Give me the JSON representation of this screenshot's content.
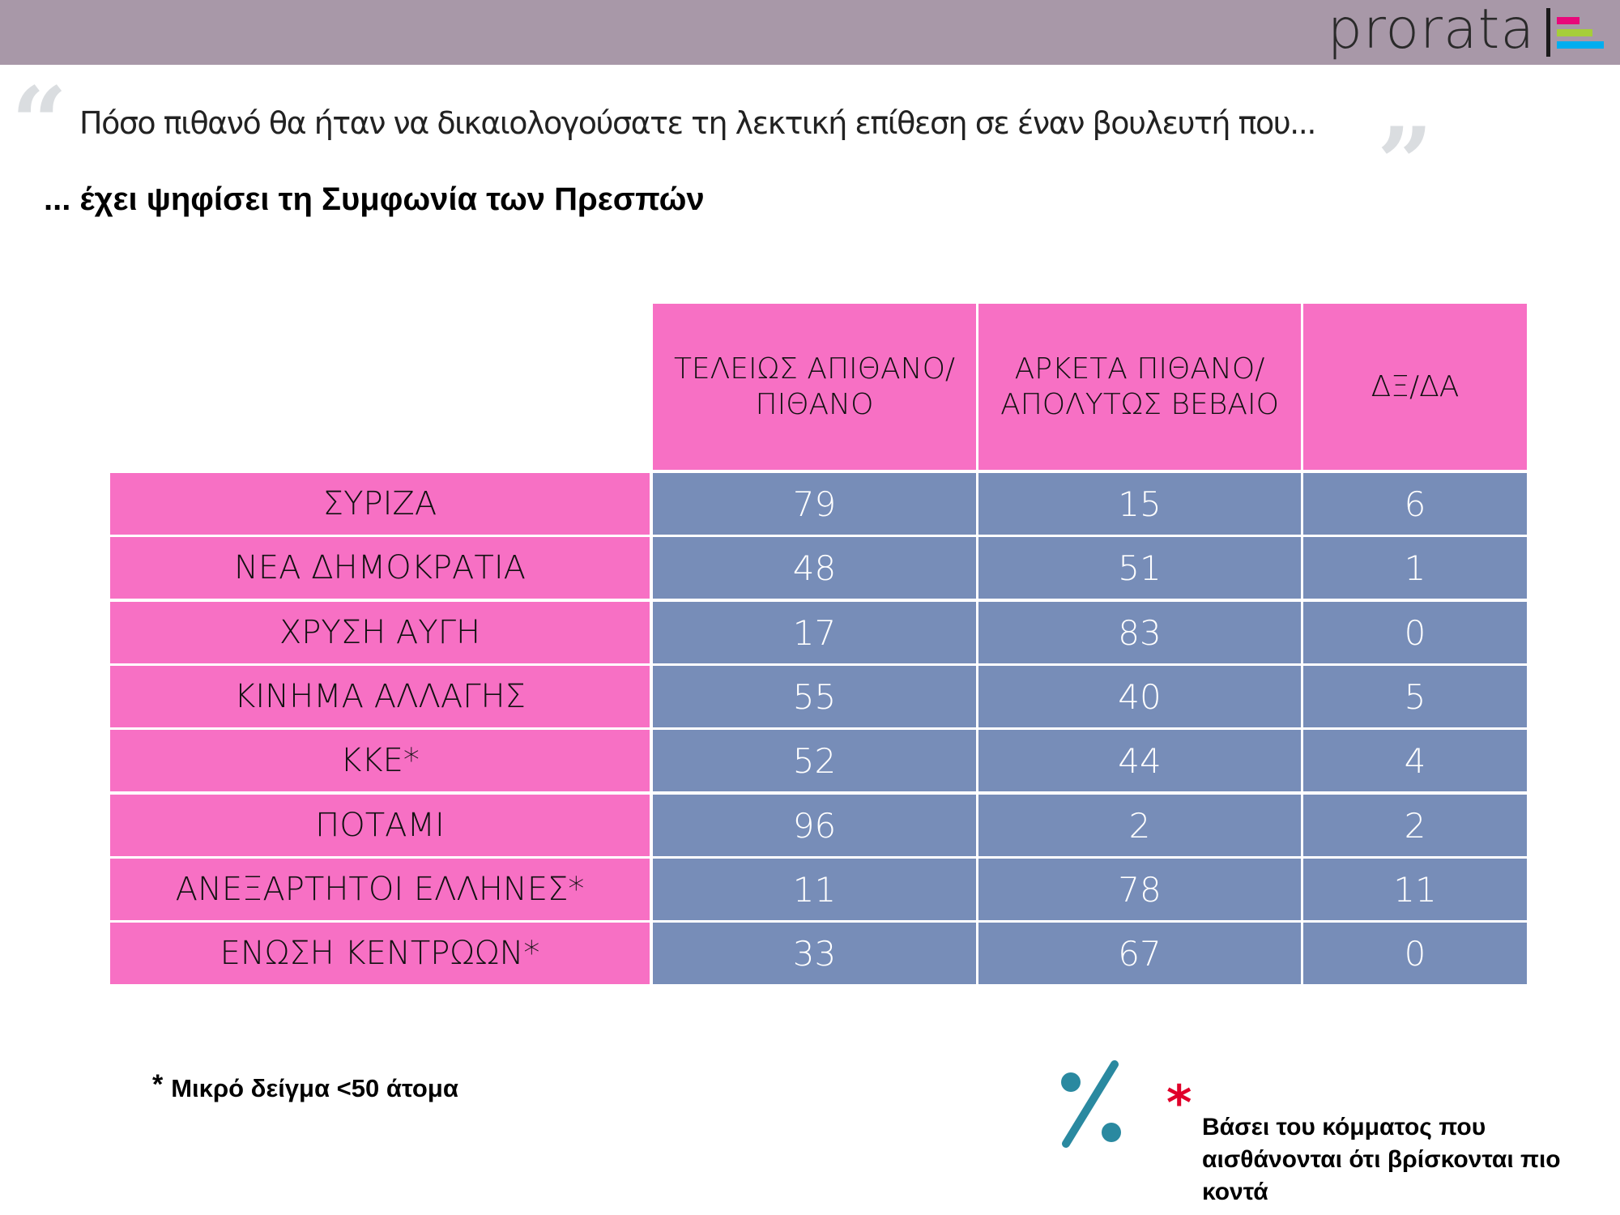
{
  "header": {
    "logo_text": "prorata",
    "logo_bar_colors": [
      "#E8087A",
      "#A6CE39",
      "#00AEEF"
    ],
    "bar_color": "#A898A8"
  },
  "question": {
    "open_quote": "“",
    "text": "Πόσο πιθανό θα ήταν να δικαιολογούσατε τη λεκτική επίθεση σε έναν βουλευτή που...",
    "close_quote": "”"
  },
  "subtitle": "... έχει ψηφίσει τη Συμφωνία των Πρεσπών",
  "table": {
    "columns": [
      "ΤΕΛΕΙΩΣ ΑΠΙΘΑΝΟ/ΠΙΘΑΝΟ",
      "ΑΡΚΕΤΑ ΠΙΘΑΝΟ/ΑΠΟΛΥΤΩΣ ΒΕΒΑΙΟ",
      "ΔΞ/ΔΑ"
    ],
    "rows": [
      {
        "label": "ΣΥΡΙΖΑ",
        "values": [
          "79",
          "15",
          "6"
        ]
      },
      {
        "label": "ΝΕΑ ΔΗΜΟΚΡΑΤΙΑ",
        "values": [
          "48",
          "51",
          "1"
        ]
      },
      {
        "label": "ΧΡΥΣΗ ΑΥΓΗ",
        "values": [
          "17",
          "83",
          "0"
        ]
      },
      {
        "label": "ΚΙΝΗΜΑ ΑΛΛΑΓΗΣ",
        "values": [
          "55",
          "40",
          "5"
        ]
      },
      {
        "label": "ΚΚΕ*",
        "values": [
          "52",
          "44",
          "4"
        ]
      },
      {
        "label": "ΠΟΤΑΜΙ",
        "values": [
          "96",
          "2",
          "2"
        ]
      },
      {
        "label": "ΑΝΕΞΑΡΤΗΤΟΙ ΕΛΛΗΝΕΣ*",
        "values": [
          "11",
          "78",
          "11"
        ]
      },
      {
        "label": "ΕΝΩΣΗ ΚΕΝΤΡΩΩΝ*",
        "values": [
          "33",
          "67",
          "0"
        ]
      }
    ],
    "header_color": "#F770C4",
    "label_color": "#F770C4",
    "value_color": "#778DB8"
  },
  "footnotes": {
    "small_sample_star": "*",
    "small_sample": "Μικρό δείγμα <50 άτομα",
    "percent_icon": "percent-icon",
    "party_star": "*",
    "party_basis": "Βάσει του κόμματος που αισθάνονται ότι βρίσκονται πιο κοντά"
  }
}
